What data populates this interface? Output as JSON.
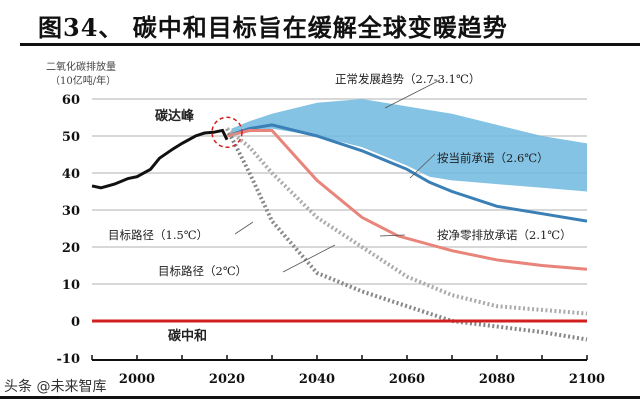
{
  "title": "图34、 碳中和目标旨在缓解全球变暖趋势",
  "watermark": "头条 @未来智库",
  "chart_data": {
    "type": "line",
    "title": "图34、 碳中和目标旨在缓解全球变暖趋势",
    "ylabel": "二氧化碳排放量",
    "yunit": "（10亿吨/年）",
    "xlim": [
      1990,
      2100
    ],
    "ylim": [
      -10,
      60
    ],
    "yticks": [
      60,
      50,
      40,
      30,
      20,
      10,
      0,
      -10
    ],
    "xticks": [
      2000,
      2020,
      2040,
      2060,
      2080,
      2100
    ],
    "grid": true,
    "band": {
      "name": "正常发展趋势（2.7-3.1℃）",
      "color": "#6fb8df",
      "x": [
        2021,
        2025,
        2030,
        2040,
        2050,
        2060,
        2065,
        2070,
        2080,
        2090,
        2100
      ],
      "upper": [
        52,
        54,
        56,
        59,
        60,
        58,
        57,
        56,
        53,
        50,
        48
      ],
      "lower": [
        50,
        51,
        52,
        50,
        47,
        42,
        39,
        38,
        37,
        36,
        35
      ]
    },
    "series": [
      {
        "name": "碳达峰",
        "color": "#111111",
        "style": "solid",
        "x": [
          1990,
          1992,
          1995,
          1998,
          2000,
          2003,
          2005,
          2008,
          2010,
          2013,
          2015,
          2017,
          2019,
          2020
        ],
        "y": [
          36.5,
          36,
          37,
          38.5,
          39,
          41,
          44,
          46.5,
          48,
          50,
          50.8,
          51,
          51.5,
          49
        ]
      },
      {
        "name": "按当前承诺（2.6℃）",
        "color": "#3a7fb5",
        "style": "solid",
        "x": [
          2020,
          2025,
          2030,
          2040,
          2050,
          2060,
          2065,
          2070,
          2080,
          2090,
          2100
        ],
        "y": [
          50,
          52,
          53,
          50,
          46,
          41,
          37.5,
          35,
          31,
          29,
          27
        ]
      },
      {
        "name": "按净零排放承诺（2.1℃）",
        "color": "#e8847a",
        "style": "solid",
        "x": [
          2020,
          2025,
          2030,
          2040,
          2050,
          2058,
          2070,
          2080,
          2090,
          2100
        ],
        "y": [
          50,
          51.5,
          51.5,
          38,
          28,
          23,
          19,
          16.5,
          15,
          14
        ]
      },
      {
        "name": "目标路径（1.5℃）",
        "color": "#888888",
        "style": "dotted",
        "x": [
          2020,
          2025,
          2030,
          2035,
          2040,
          2050,
          2060,
          2070,
          2080,
          2090,
          2100
        ],
        "y": [
          52,
          40,
          27,
          20,
          13,
          8,
          4,
          0,
          -1.5,
          -3,
          -5
        ]
      },
      {
        "name": "目标路径（2℃）",
        "color": "#aaaaaa",
        "style": "dotted",
        "x": [
          2020,
          2025,
          2030,
          2040,
          2050,
          2060,
          2070,
          2080,
          2090,
          2100
        ],
        "y": [
          52,
          47,
          40,
          28,
          20,
          12,
          7,
          4,
          3,
          2
        ]
      },
      {
        "name": "碳中和",
        "color": "#d41f1f",
        "style": "solid",
        "x": [
          1990,
          2100
        ],
        "y": [
          0,
          0
        ]
      }
    ],
    "annotations": [
      "碳达峰",
      "正常发展趋势（2.7-3.1℃）",
      "按当前承诺（2.6℃）",
      "按净零排放承诺（2.1℃）",
      "目标路径（1.5℃）",
      "目标路径（2℃）",
      "碳中和"
    ]
  }
}
